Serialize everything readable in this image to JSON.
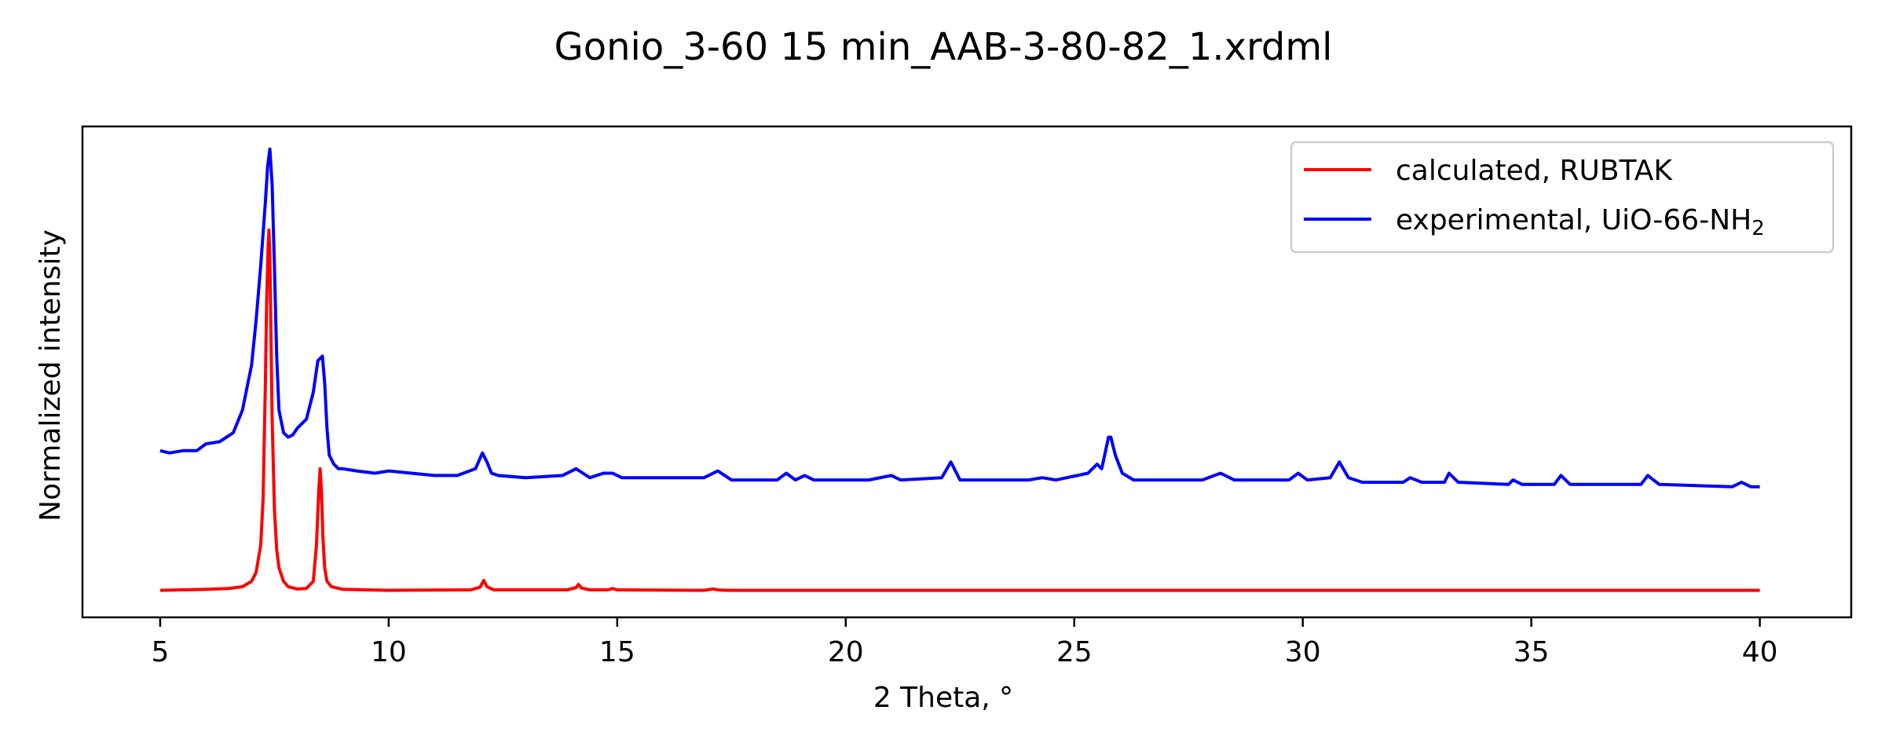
{
  "chart_data": {
    "type": "line",
    "title": "Gonio_3-60 15 min_AAB-3-80-82_1.xrdml",
    "xlabel": "2 Theta, °",
    "ylabel": "Normalized intensity",
    "xlim": [
      3.3,
      42.0
    ],
    "ylim": [
      -0.06,
      1.03
    ],
    "xticks": [
      5,
      10,
      15,
      20,
      25,
      30,
      35,
      40
    ],
    "grid": false,
    "legend_position": "top-right",
    "series": [
      {
        "name": "calculated, RUBTAK",
        "color": "#ff0000",
        "x": [
          5.0,
          6.0,
          6.5,
          6.8,
          7.0,
          7.1,
          7.2,
          7.25,
          7.3,
          7.33,
          7.36,
          7.38,
          7.4,
          7.42,
          7.45,
          7.5,
          7.55,
          7.6,
          7.7,
          7.8,
          8.0,
          8.2,
          8.35,
          8.42,
          8.47,
          8.5,
          8.53,
          8.56,
          8.6,
          8.65,
          8.75,
          9.0,
          10.0,
          11.8,
          12.0,
          12.08,
          12.15,
          12.3,
          13.9,
          14.1,
          14.15,
          14.22,
          14.4,
          14.8,
          14.9,
          15.0,
          16.9,
          17.1,
          17.2,
          17.4,
          40.0
        ],
        "y": [
          0.0,
          0.002,
          0.004,
          0.008,
          0.02,
          0.04,
          0.1,
          0.2,
          0.45,
          0.64,
          0.76,
          0.8,
          0.74,
          0.6,
          0.38,
          0.18,
          0.09,
          0.05,
          0.02,
          0.008,
          0.003,
          0.004,
          0.02,
          0.1,
          0.22,
          0.27,
          0.22,
          0.12,
          0.05,
          0.02,
          0.008,
          0.002,
          0.0,
          0.001,
          0.007,
          0.022,
          0.008,
          0.001,
          0.001,
          0.006,
          0.013,
          0.005,
          0.001,
          0.001,
          0.004,
          0.001,
          0.0,
          0.003,
          0.001,
          0.0,
          0.0
        ],
        "label_tex": "calculated, RUBTAK"
      },
      {
        "name": "experimental, UiO-66-NH₂",
        "legend_main": "experimental, UiO-66-NH",
        "legend_sub": "2",
        "color": "#0000ff",
        "x": [
          5.0,
          5.2,
          5.5,
          5.8,
          6.0,
          6.3,
          6.6,
          6.8,
          7.0,
          7.1,
          7.2,
          7.3,
          7.35,
          7.4,
          7.45,
          7.5,
          7.55,
          7.6,
          7.7,
          7.8,
          7.9,
          8.0,
          8.2,
          8.35,
          8.45,
          8.55,
          8.6,
          8.65,
          8.7,
          8.8,
          8.9,
          9.0,
          9.3,
          9.7,
          10.0,
          10.5,
          11.0,
          11.5,
          11.9,
          12.05,
          12.15,
          12.25,
          12.4,
          13.0,
          13.8,
          14.1,
          14.25,
          14.4,
          14.7,
          14.9,
          15.1,
          16.0,
          16.9,
          17.2,
          17.5,
          18.5,
          18.7,
          18.9,
          19.1,
          19.3,
          20.5,
          21.0,
          21.2,
          22.1,
          22.3,
          22.5,
          24.0,
          24.3,
          24.6,
          25.3,
          25.5,
          25.6,
          25.75,
          25.8,
          25.9,
          26.05,
          26.3,
          27.8,
          28.2,
          28.5,
          29.7,
          29.9,
          30.1,
          30.6,
          30.8,
          31.0,
          31.3,
          32.2,
          32.35,
          32.6,
          33.1,
          33.2,
          33.4,
          34.5,
          34.6,
          34.8,
          35.5,
          35.65,
          35.85,
          37.4,
          37.55,
          37.8,
          39.4,
          39.6,
          39.8,
          40.0
        ],
        "y": [
          0.31,
          0.305,
          0.31,
          0.31,
          0.325,
          0.33,
          0.35,
          0.4,
          0.5,
          0.6,
          0.72,
          0.86,
          0.94,
          0.98,
          0.9,
          0.72,
          0.52,
          0.4,
          0.35,
          0.34,
          0.345,
          0.36,
          0.38,
          0.44,
          0.51,
          0.52,
          0.46,
          0.36,
          0.3,
          0.28,
          0.27,
          0.27,
          0.265,
          0.26,
          0.265,
          0.26,
          0.255,
          0.255,
          0.27,
          0.305,
          0.285,
          0.26,
          0.255,
          0.25,
          0.255,
          0.27,
          0.26,
          0.25,
          0.26,
          0.26,
          0.25,
          0.25,
          0.25,
          0.265,
          0.245,
          0.245,
          0.26,
          0.245,
          0.255,
          0.245,
          0.245,
          0.255,
          0.245,
          0.25,
          0.285,
          0.245,
          0.245,
          0.25,
          0.245,
          0.26,
          0.28,
          0.27,
          0.34,
          0.34,
          0.3,
          0.26,
          0.245,
          0.245,
          0.26,
          0.245,
          0.245,
          0.26,
          0.245,
          0.25,
          0.285,
          0.25,
          0.24,
          0.24,
          0.25,
          0.24,
          0.24,
          0.26,
          0.24,
          0.235,
          0.245,
          0.235,
          0.235,
          0.255,
          0.235,
          0.235,
          0.255,
          0.235,
          0.23,
          0.24,
          0.23,
          0.23
        ]
      }
    ]
  }
}
